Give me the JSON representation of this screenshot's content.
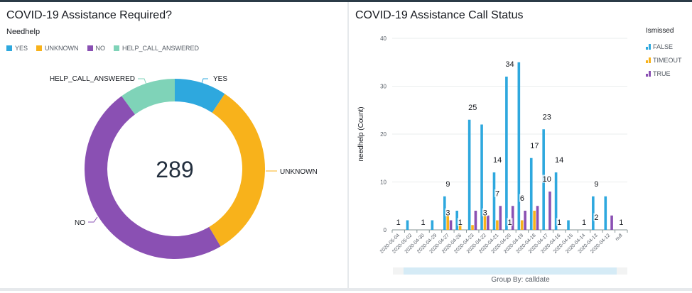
{
  "left_panel": {
    "title": "COVID-19 Assistance Required?",
    "subtitle": "Needhelp",
    "legend": [
      {
        "label": "YES",
        "color": "#2ea8de"
      },
      {
        "label": "UNKNOWN",
        "color": "#f8b21b"
      },
      {
        "label": "NO",
        "color": "#8a50b3"
      },
      {
        "label": "HELP_CALL_ANSWERED",
        "color": "#7fd3b8"
      }
    ],
    "total_label": "289"
  },
  "right_panel": {
    "title": "COVID-19 Assistance Call Status",
    "legend_title": "Ismissed",
    "legend": [
      {
        "label": "FALSE",
        "color": "#2ea8de"
      },
      {
        "label": "TIMEOUT",
        "color": "#f8b21b"
      },
      {
        "label": "TRUE",
        "color": "#8a50b3"
      }
    ],
    "group_by": "Group By: calldate"
  },
  "chart_data": [
    {
      "type": "pie",
      "variant": "donut",
      "title": "COVID-19 Assistance Required?",
      "legend_title": "Needhelp",
      "categories": [
        "YES",
        "UNKNOWN",
        "NO",
        "HELP_CALL_ANSWERED"
      ],
      "values": [
        27,
        93,
        140,
        29
      ],
      "total": 289,
      "colors": [
        "#2ea8de",
        "#f8b21b",
        "#8a50b3",
        "#7fd3b8"
      ],
      "legend_position": "top-left"
    },
    {
      "type": "bar",
      "title": "COVID-19 Assistance Call Status",
      "xlabel": "Group By: calldate",
      "ylabel": "needhelp (Count)",
      "ylim": [
        0,
        40
      ],
      "yticks": [
        0,
        10,
        20,
        30,
        40
      ],
      "grid": true,
      "legend_title": "Ismissed",
      "legend_position": "top-right",
      "categories": [
        "2020-05-04",
        "2020-05-02",
        "2020-04-30",
        "2020-04-29",
        "2020-04-27",
        "2020-04-26",
        "2020-04-23",
        "2020-04-22",
        "2020-04-21",
        "2020-04-20",
        "2020-04-19",
        "2020-04-18",
        "2020-04-17",
        "2020-04-16",
        "2020-04-15",
        "2020-04-14",
        "2020-04-13",
        "2020-04-12",
        "null"
      ],
      "series": [
        {
          "name": "FALSE",
          "color": "#2ea8de",
          "values": [
            0,
            2,
            0,
            2,
            7,
            4,
            23,
            22,
            12,
            32,
            35,
            15,
            21,
            12,
            2,
            0,
            7,
            7,
            0
          ]
        },
        {
          "name": "TIMEOUT",
          "color": "#f8b21b",
          "values": [
            0,
            0,
            0,
            0,
            3,
            1,
            1,
            3,
            2,
            0,
            2,
            4,
            0,
            0,
            0,
            0,
            0,
            0,
            0
          ]
        },
        {
          "name": "TRUE",
          "color": "#8a50b3",
          "values": [
            0,
            0,
            0,
            0,
            2,
            0,
            4,
            3,
            5,
            5,
            4,
            5,
            8,
            0,
            0,
            0,
            0,
            3,
            0
          ]
        }
      ],
      "annotations": [
        {
          "category": "2020-05-04",
          "value": 1,
          "text": "1"
        },
        {
          "category": "2020-04-30",
          "value": 1,
          "text": "1"
        },
        {
          "category": "2020-04-27",
          "value": 9,
          "text": "9"
        },
        {
          "category": "2020-04-27",
          "value": 3,
          "text": "3"
        },
        {
          "category": "2020-04-26",
          "value": 1,
          "text": "1"
        },
        {
          "category": "2020-04-23",
          "value": 25,
          "text": "25"
        },
        {
          "category": "2020-04-22",
          "value": 3,
          "text": "3"
        },
        {
          "category": "2020-04-21",
          "value": 14,
          "text": "14"
        },
        {
          "category": "2020-04-21",
          "value": 7,
          "text": "7"
        },
        {
          "category": "2020-04-20",
          "value": 34,
          "text": "34"
        },
        {
          "category": "2020-04-20",
          "value": 1,
          "text": "1"
        },
        {
          "category": "2020-04-19",
          "value": 6,
          "text": "6"
        },
        {
          "category": "2020-04-18",
          "value": 17,
          "text": "17"
        },
        {
          "category": "2020-04-17",
          "value": 23,
          "text": "23"
        },
        {
          "category": "2020-04-17",
          "value": 10,
          "text": "10"
        },
        {
          "category": "2020-04-16",
          "value": 14,
          "text": "14"
        },
        {
          "category": "2020-04-16",
          "value": 1,
          "text": "1"
        },
        {
          "category": "2020-04-14",
          "value": 1,
          "text": "1"
        },
        {
          "category": "2020-04-13",
          "value": 9,
          "text": "9"
        },
        {
          "category": "2020-04-13",
          "value": 2,
          "text": "2"
        },
        {
          "category": "null",
          "value": 1,
          "text": "1"
        }
      ]
    }
  ]
}
